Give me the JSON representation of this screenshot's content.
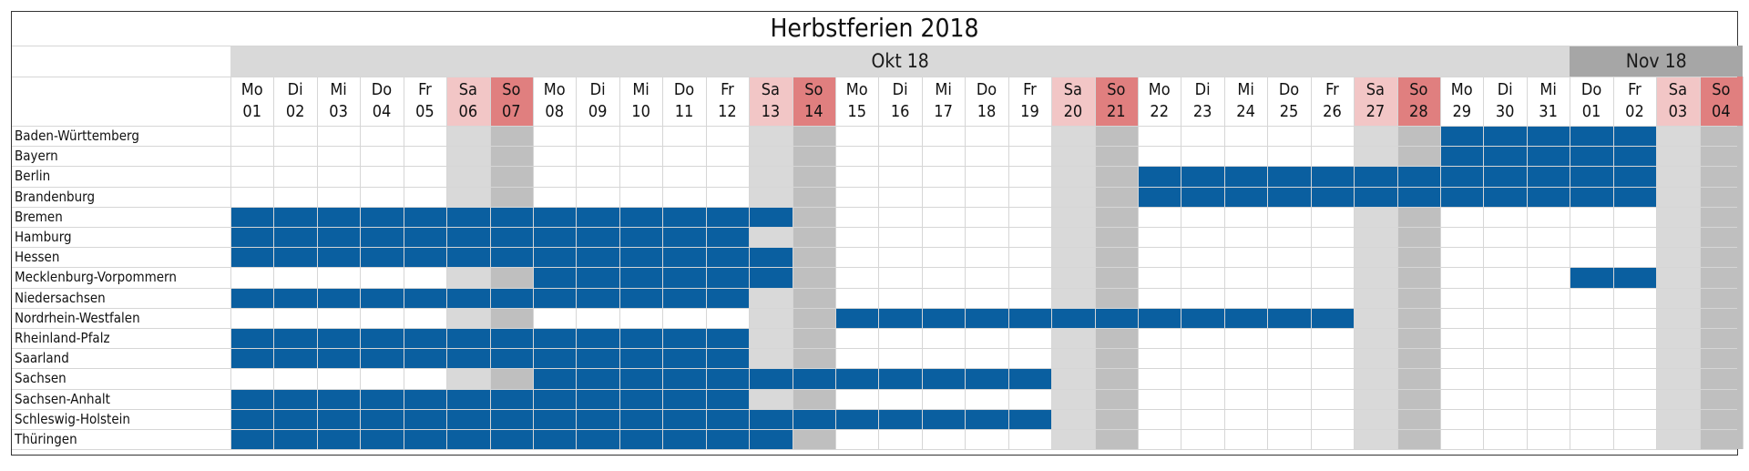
{
  "title": "Herbstferien 2018",
  "months": [
    {
      "label": "Okt 18",
      "start": 0,
      "span": 31,
      "color": "#d9d9d9"
    },
    {
      "label": "Nov 18",
      "start": 31,
      "span": 4,
      "color": "#a6a6a6"
    }
  ],
  "days": [
    {
      "dow": "Mo",
      "num": "01"
    },
    {
      "dow": "Di",
      "num": "02"
    },
    {
      "dow": "Mi",
      "num": "03"
    },
    {
      "dow": "Do",
      "num": "04"
    },
    {
      "dow": "Fr",
      "num": "05"
    },
    {
      "dow": "Sa",
      "num": "06"
    },
    {
      "dow": "So",
      "num": "07"
    },
    {
      "dow": "Mo",
      "num": "08"
    },
    {
      "dow": "Di",
      "num": "09"
    },
    {
      "dow": "Mi",
      "num": "10"
    },
    {
      "dow": "Do",
      "num": "11"
    },
    {
      "dow": "Fr",
      "num": "12"
    },
    {
      "dow": "Sa",
      "num": "13"
    },
    {
      "dow": "So",
      "num": "14"
    },
    {
      "dow": "Mo",
      "num": "15"
    },
    {
      "dow": "Di",
      "num": "16"
    },
    {
      "dow": "Mi",
      "num": "17"
    },
    {
      "dow": "Do",
      "num": "18"
    },
    {
      "dow": "Fr",
      "num": "19"
    },
    {
      "dow": "Sa",
      "num": "20"
    },
    {
      "dow": "So",
      "num": "21"
    },
    {
      "dow": "Mo",
      "num": "22"
    },
    {
      "dow": "Di",
      "num": "23"
    },
    {
      "dow": "Mi",
      "num": "24"
    },
    {
      "dow": "Do",
      "num": "25"
    },
    {
      "dow": "Fr",
      "num": "26"
    },
    {
      "dow": "Sa",
      "num": "27"
    },
    {
      "dow": "So",
      "num": "28"
    },
    {
      "dow": "Mo",
      "num": "29"
    },
    {
      "dow": "Di",
      "num": "30"
    },
    {
      "dow": "Mi",
      "num": "31"
    },
    {
      "dow": "Do",
      "num": "01"
    },
    {
      "dow": "Fr",
      "num": "02"
    },
    {
      "dow": "Sa",
      "num": "03"
    },
    {
      "dow": "So",
      "num": "04"
    }
  ],
  "states": [
    {
      "name": "Baden-Württemberg",
      "holidays": [
        [
          28,
          32
        ]
      ]
    },
    {
      "name": "Bayern",
      "holidays": [
        [
          28,
          32
        ]
      ]
    },
    {
      "name": "Berlin",
      "holidays": [
        [
          21,
          32
        ]
      ]
    },
    {
      "name": "Brandenburg",
      "holidays": [
        [
          21,
          32
        ]
      ]
    },
    {
      "name": "Bremen",
      "holidays": [
        [
          0,
          12
        ]
      ]
    },
    {
      "name": "Hamburg",
      "holidays": [
        [
          0,
          11
        ]
      ]
    },
    {
      "name": "Hessen",
      "holidays": [
        [
          0,
          12
        ]
      ]
    },
    {
      "name": "Mecklenburg-Vorpommern",
      "holidays": [
        [
          7,
          12
        ],
        [
          31,
          32
        ]
      ]
    },
    {
      "name": "Niedersachsen",
      "holidays": [
        [
          0,
          11
        ]
      ]
    },
    {
      "name": "Nordrhein-Westfalen",
      "holidays": [
        [
          14,
          25
        ]
      ]
    },
    {
      "name": "Rheinland-Pfalz",
      "holidays": [
        [
          0,
          11
        ]
      ]
    },
    {
      "name": "Saarland",
      "holidays": [
        [
          0,
          11
        ]
      ]
    },
    {
      "name": "Sachsen",
      "holidays": [
        [
          7,
          18
        ]
      ]
    },
    {
      "name": "Sachsen-Anhalt",
      "holidays": [
        [
          0,
          11
        ]
      ]
    },
    {
      "name": "Schleswig-Holstein",
      "holidays": [
        [
          0,
          18
        ]
      ]
    },
    {
      "name": "Thüringen",
      "holidays": [
        [
          0,
          12
        ]
      ]
    }
  ],
  "colors": {
    "holiday": "#0a5fa0",
    "saturday_header": "#f2c6c6",
    "sunday_header": "#e07f7f",
    "saturday_column": "#d9d9d9",
    "sunday_column": "#bfbfbf",
    "grid": "#d6d6d6",
    "text": "#111111"
  }
}
